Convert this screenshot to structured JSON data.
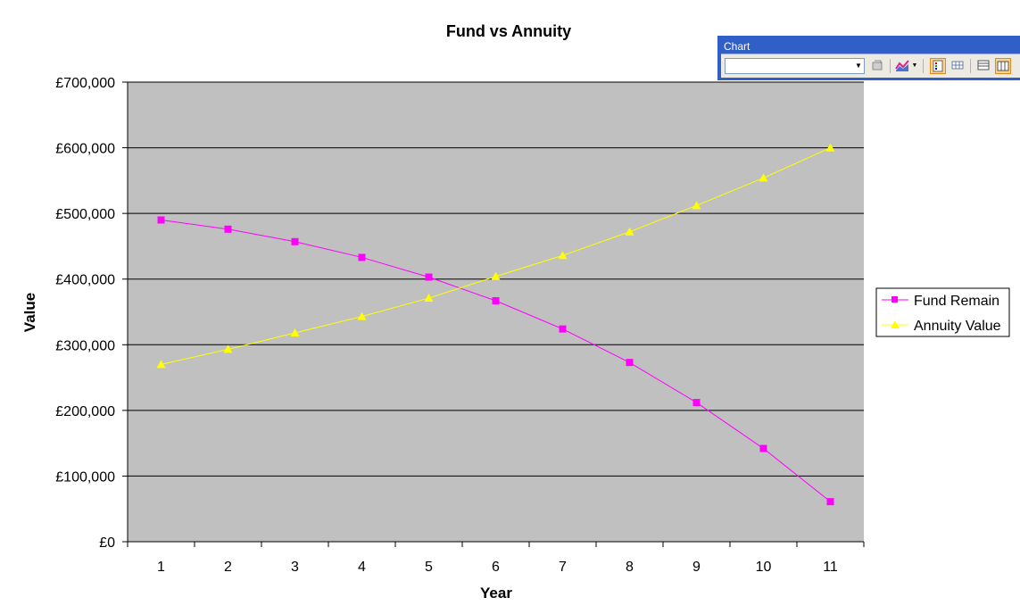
{
  "toolbar": {
    "title": "Chart",
    "chart_object_value": "",
    "icons": [
      "format-chart-area-icon",
      "chart-type-icon",
      "legend-icon",
      "data-table-icon",
      "by-row-icon",
      "by-column-icon"
    ]
  },
  "colors": {
    "plot_area": "#c0c0c0",
    "gridline": "#000000",
    "fund_series": "#ff00ff",
    "annuity_series": "#ffff00",
    "toolbar_titlebar": "#2f5fc7"
  },
  "chart_data": {
    "type": "line",
    "title": "Fund vs Annuity",
    "xlabel": "Year",
    "ylabel": "Value",
    "categories": [
      "1",
      "2",
      "3",
      "4",
      "5",
      "6",
      "7",
      "8",
      "9",
      "10",
      "11"
    ],
    "ylim": [
      0,
      700000
    ],
    "yticks": [
      0,
      100000,
      200000,
      300000,
      400000,
      500000,
      600000,
      700000
    ],
    "ytick_labels": [
      "£0",
      "£100,000",
      "£200,000",
      "£300,000",
      "£400,000",
      "£500,000",
      "£600,000",
      "£700,000"
    ],
    "grid": true,
    "legend_position": "right",
    "series": [
      {
        "name": "Fund Remain",
        "marker": "square",
        "values": [
          490000,
          476000,
          457000,
          433000,
          403000,
          367000,
          324000,
          273000,
          212000,
          142000,
          61000
        ]
      },
      {
        "name": "Annuity Value",
        "marker": "triangle",
        "values": [
          270000,
          293000,
          318000,
          343000,
          371000,
          404000,
          436000,
          472000,
          512000,
          554000,
          600000
        ]
      }
    ]
  }
}
